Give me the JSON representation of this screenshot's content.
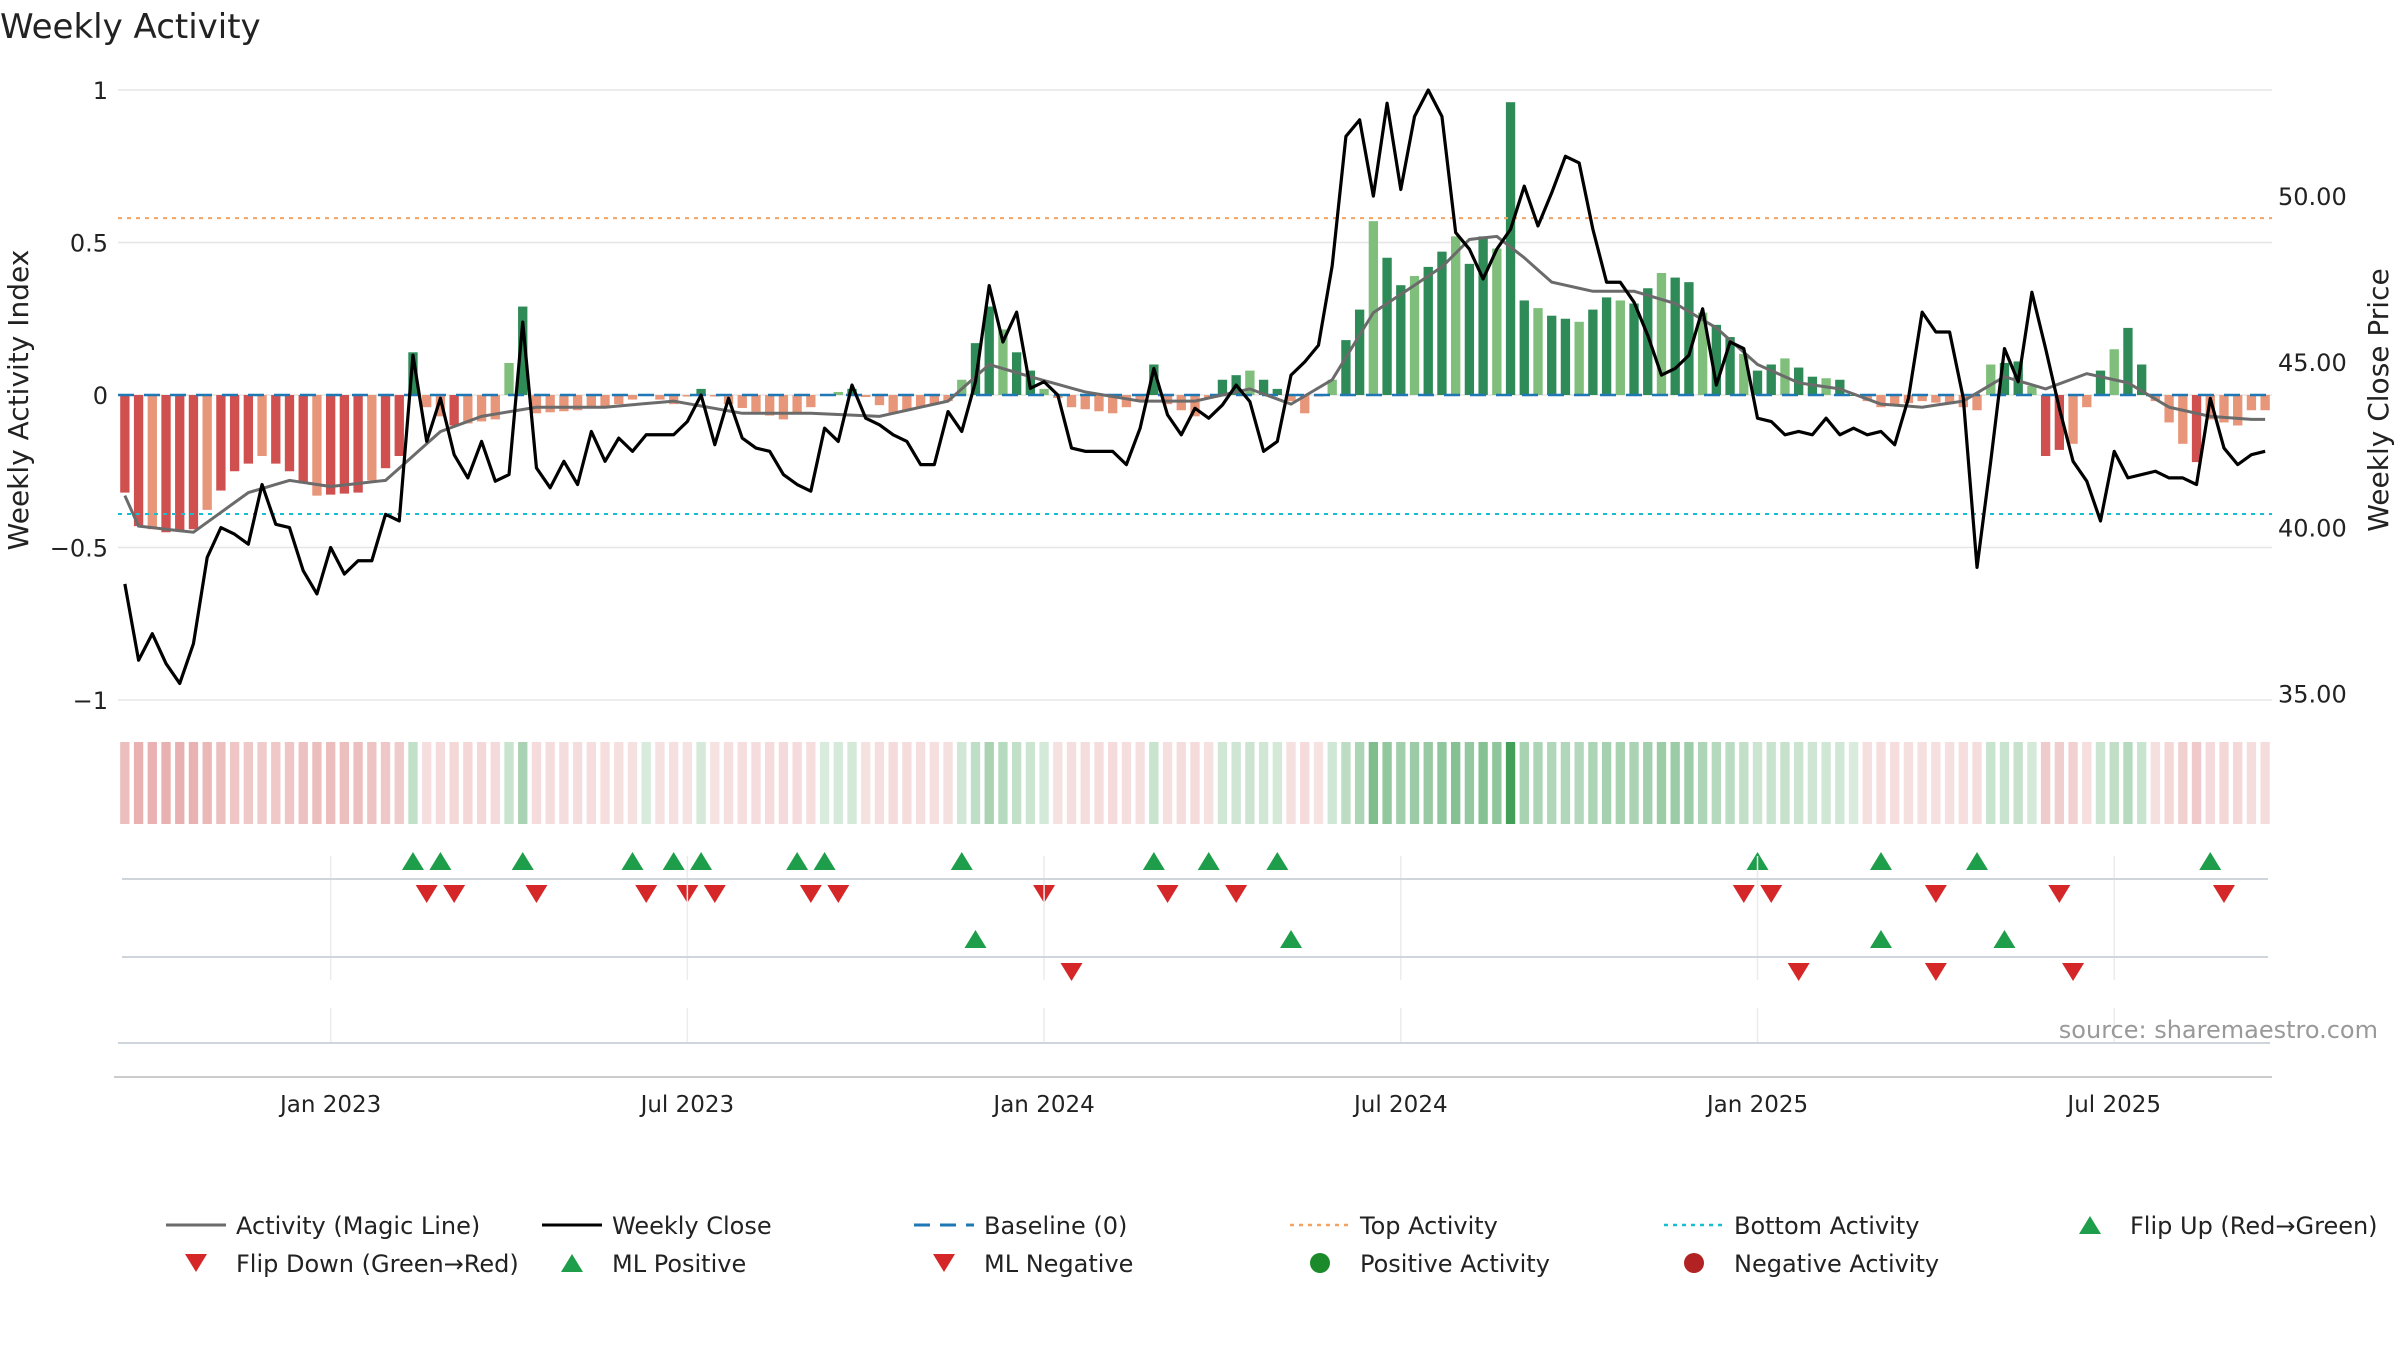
{
  "chart_data": {
    "type": "bar+line",
    "title": "Weekly Activity",
    "ylabel_left": "Weekly Activity Index",
    "ylabel_right": "Weekly Close Price",
    "left_ticks": [
      1,
      0.5,
      0,
      -0.5,
      -1
    ],
    "left_tick_labels": [
      "1",
      "0.5",
      "0",
      "−0.5",
      "−1"
    ],
    "left_ylim": [
      -1,
      1
    ],
    "right_ticks": [
      50,
      45,
      40,
      35
    ],
    "right_tick_labels": [
      "50.00",
      "45.00",
      "40.00",
      "35.00"
    ],
    "right_ylim": [
      34.8,
      53.2
    ],
    "x_ticks": [
      "Jan 2023",
      "Jul 2023",
      "Jan 2024",
      "Jul 2024",
      "Jan 2025",
      "Jul 2025"
    ],
    "x_tick_weeks": [
      15,
      41,
      67,
      93,
      119,
      145
    ],
    "weeks": 157,
    "top_activity": 0.58,
    "bottom_activity": -0.39,
    "baseline": 0,
    "activity_anchors": [
      [
        0,
        -0.32
      ],
      [
        1,
        -0.43
      ],
      [
        3,
        -0.45
      ],
      [
        5,
        -0.44
      ],
      [
        8,
        -0.25
      ],
      [
        10,
        -0.2
      ],
      [
        12,
        -0.25
      ],
      [
        14,
        -0.33
      ],
      [
        17,
        -0.32
      ],
      [
        20,
        -0.2
      ],
      [
        21,
        0.14
      ],
      [
        22,
        -0.04
      ],
      [
        24,
        -0.1
      ],
      [
        27,
        -0.08
      ],
      [
        29,
        0.29
      ],
      [
        30,
        -0.06
      ],
      [
        33,
        -0.05
      ],
      [
        36,
        -0.03
      ],
      [
        38,
        0.0
      ],
      [
        40,
        -0.03
      ],
      [
        42,
        0.02
      ],
      [
        44,
        -0.03
      ],
      [
        48,
        -0.08
      ],
      [
        50,
        -0.04
      ],
      [
        51,
        0.0
      ],
      [
        53,
        0.02
      ],
      [
        56,
        -0.06
      ],
      [
        58,
        -0.04
      ],
      [
        60,
        -0.02
      ],
      [
        61,
        0.05
      ],
      [
        63,
        0.29
      ],
      [
        65,
        0.14
      ],
      [
        67,
        0.02
      ],
      [
        69,
        -0.04
      ],
      [
        72,
        -0.06
      ],
      [
        74,
        -0.02
      ],
      [
        75,
        0.1
      ],
      [
        76,
        -0.03
      ],
      [
        78,
        -0.07
      ],
      [
        80,
        0.05
      ],
      [
        82,
        0.08
      ],
      [
        84,
        0.02
      ],
      [
        86,
        -0.06
      ],
      [
        88,
        0.05
      ],
      [
        89,
        0.18
      ],
      [
        90,
        0.28
      ],
      [
        91,
        0.57
      ],
      [
        92,
        0.45
      ],
      [
        93,
        0.36
      ],
      [
        95,
        0.42
      ],
      [
        97,
        0.52
      ],
      [
        98,
        0.43
      ],
      [
        99,
        0.52
      ],
      [
        100,
        0.48
      ],
      [
        101,
        0.96
      ],
      [
        102,
        0.31
      ],
      [
        104,
        0.26
      ],
      [
        106,
        0.24
      ],
      [
        108,
        0.32
      ],
      [
        110,
        0.3
      ],
      [
        112,
        0.4
      ],
      [
        114,
        0.37
      ],
      [
        115,
        0.27
      ],
      [
        117,
        0.19
      ],
      [
        119,
        0.08
      ],
      [
        121,
        0.12
      ],
      [
        123,
        0.06
      ],
      [
        125,
        0.05
      ],
      [
        126,
        0.0
      ],
      [
        128,
        -0.04
      ],
      [
        131,
        -0.02
      ],
      [
        133,
        -0.03
      ],
      [
        135,
        -0.05
      ],
      [
        136,
        0.1
      ],
      [
        138,
        0.11
      ],
      [
        139,
        0.03
      ],
      [
        140,
        -0.2
      ],
      [
        142,
        -0.16
      ],
      [
        144,
        0.08
      ],
      [
        146,
        0.22
      ],
      [
        147,
        0.1
      ],
      [
        148,
        -0.02
      ],
      [
        150,
        -0.16
      ],
      [
        151,
        -0.22
      ],
      [
        152,
        -0.08
      ],
      [
        154,
        -0.1
      ],
      [
        155,
        -0.05
      ],
      [
        156,
        -0.05
      ]
    ],
    "magic_line_anchors": [
      [
        0,
        -0.33
      ],
      [
        1,
        -0.43
      ],
      [
        5,
        -0.45
      ],
      [
        9,
        -0.32
      ],
      [
        12,
        -0.28
      ],
      [
        15,
        -0.3
      ],
      [
        19,
        -0.28
      ],
      [
        21,
        -0.2
      ],
      [
        23,
        -0.12
      ],
      [
        26,
        -0.07
      ],
      [
        30,
        -0.04
      ],
      [
        35,
        -0.04
      ],
      [
        40,
        -0.02
      ],
      [
        45,
        -0.06
      ],
      [
        50,
        -0.06
      ],
      [
        55,
        -0.07
      ],
      [
        60,
        -0.02
      ],
      [
        63,
        0.1
      ],
      [
        66,
        0.06
      ],
      [
        70,
        0.01
      ],
      [
        74,
        -0.02
      ],
      [
        78,
        -0.02
      ],
      [
        82,
        0.02
      ],
      [
        85,
        -0.03
      ],
      [
        88,
        0.05
      ],
      [
        91,
        0.27
      ],
      [
        93,
        0.33
      ],
      [
        96,
        0.42
      ],
      [
        98,
        0.51
      ],
      [
        100,
        0.52
      ],
      [
        102,
        0.45
      ],
      [
        104,
        0.37
      ],
      [
        107,
        0.34
      ],
      [
        110,
        0.34
      ],
      [
        113,
        0.3
      ],
      [
        116,
        0.22
      ],
      [
        119,
        0.1
      ],
      [
        122,
        0.04
      ],
      [
        125,
        0.02
      ],
      [
        128,
        -0.03
      ],
      [
        131,
        -0.04
      ],
      [
        134,
        -0.02
      ],
      [
        137,
        0.06
      ],
      [
        140,
        0.02
      ],
      [
        143,
        0.07
      ],
      [
        146,
        0.04
      ],
      [
        149,
        -0.04
      ],
      [
        152,
        -0.07
      ],
      [
        155,
        -0.08
      ],
      [
        156,
        -0.08
      ]
    ],
    "close_anchors": [
      [
        0,
        38.3
      ],
      [
        1,
        36.0
      ],
      [
        2,
        36.8
      ],
      [
        3,
        35.9
      ],
      [
        4,
        35.3
      ],
      [
        5,
        36.5
      ],
      [
        6,
        39.1
      ],
      [
        7,
        40.0
      ],
      [
        8,
        39.8
      ],
      [
        9,
        39.5
      ],
      [
        10,
        41.3
      ],
      [
        11,
        40.1
      ],
      [
        12,
        40.0
      ],
      [
        13,
        38.7
      ],
      [
        14,
        38.0
      ],
      [
        15,
        39.4
      ],
      [
        16,
        38.6
      ],
      [
        17,
        39.0
      ],
      [
        18,
        39.0
      ],
      [
        19,
        40.4
      ],
      [
        20,
        40.2
      ],
      [
        21,
        45.2
      ],
      [
        22,
        42.6
      ],
      [
        23,
        43.9
      ],
      [
        24,
        42.2
      ],
      [
        25,
        41.5
      ],
      [
        26,
        42.6
      ],
      [
        27,
        41.4
      ],
      [
        28,
        41.6
      ],
      [
        29,
        46.2
      ],
      [
        30,
        41.8
      ],
      [
        31,
        41.2
      ],
      [
        32,
        42.0
      ],
      [
        33,
        41.3
      ],
      [
        34,
        42.9
      ],
      [
        35,
        42.0
      ],
      [
        36,
        42.7
      ],
      [
        37,
        42.3
      ],
      [
        38,
        42.8
      ],
      [
        39,
        42.8
      ],
      [
        40,
        42.8
      ],
      [
        41,
        43.2
      ],
      [
        42,
        44.0
      ],
      [
        43,
        42.5
      ],
      [
        44,
        43.9
      ],
      [
        45,
        42.7
      ],
      [
        46,
        42.4
      ],
      [
        47,
        42.3
      ],
      [
        48,
        41.6
      ],
      [
        49,
        41.3
      ],
      [
        50,
        41.1
      ],
      [
        51,
        43.0
      ],
      [
        52,
        42.6
      ],
      [
        53,
        44.3
      ],
      [
        54,
        43.3
      ],
      [
        55,
        43.1
      ],
      [
        56,
        42.8
      ],
      [
        57,
        42.6
      ],
      [
        58,
        41.9
      ],
      [
        59,
        41.9
      ],
      [
        60,
        43.5
      ],
      [
        61,
        42.9
      ],
      [
        62,
        44.4
      ],
      [
        63,
        47.3
      ],
      [
        64,
        45.6
      ],
      [
        65,
        46.5
      ],
      [
        66,
        44.2
      ],
      [
        67,
        44.4
      ],
      [
        68,
        44.0
      ],
      [
        69,
        42.4
      ],
      [
        70,
        42.3
      ],
      [
        71,
        42.3
      ],
      [
        72,
        42.3
      ],
      [
        73,
        41.9
      ],
      [
        74,
        43.0
      ],
      [
        75,
        44.8
      ],
      [
        76,
        43.4
      ],
      [
        77,
        42.8
      ],
      [
        78,
        43.6
      ],
      [
        79,
        43.3
      ],
      [
        80,
        43.7
      ],
      [
        81,
        44.3
      ],
      [
        82,
        43.8
      ],
      [
        83,
        42.3
      ],
      [
        84,
        42.6
      ],
      [
        85,
        44.6
      ],
      [
        86,
        45.0
      ],
      [
        87,
        45.5
      ],
      [
        88,
        47.9
      ],
      [
        89,
        51.8
      ],
      [
        90,
        52.3
      ],
      [
        91,
        50.0
      ],
      [
        92,
        52.8
      ],
      [
        93,
        50.2
      ],
      [
        94,
        52.4
      ],
      [
        95,
        53.2
      ],
      [
        96,
        52.4
      ],
      [
        97,
        48.9
      ],
      [
        98,
        48.4
      ],
      [
        99,
        47.5
      ],
      [
        100,
        48.4
      ],
      [
        101,
        49.0
      ],
      [
        102,
        50.3
      ],
      [
        103,
        49.1
      ],
      [
        104,
        50.1
      ],
      [
        105,
        51.2
      ],
      [
        106,
        51.0
      ],
      [
        107,
        49.0
      ],
      [
        108,
        47.4
      ],
      [
        109,
        47.4
      ],
      [
        110,
        46.8
      ],
      [
        111,
        45.8
      ],
      [
        112,
        44.6
      ],
      [
        113,
        44.8
      ],
      [
        114,
        45.2
      ],
      [
        115,
        46.6
      ],
      [
        116,
        44.3
      ],
      [
        117,
        45.6
      ],
      [
        118,
        45.4
      ],
      [
        119,
        43.3
      ],
      [
        120,
        43.2
      ],
      [
        121,
        42.8
      ],
      [
        122,
        42.9
      ],
      [
        123,
        42.8
      ],
      [
        124,
        43.3
      ],
      [
        125,
        42.8
      ],
      [
        126,
        43.0
      ],
      [
        127,
        42.8
      ],
      [
        128,
        42.9
      ],
      [
        129,
        42.5
      ],
      [
        130,
        43.9
      ],
      [
        131,
        46.5
      ],
      [
        132,
        45.9
      ],
      [
        133,
        45.9
      ],
      [
        134,
        43.9
      ],
      [
        135,
        38.8
      ],
      [
        136,
        42.0
      ],
      [
        137,
        45.4
      ],
      [
        138,
        44.4
      ],
      [
        139,
        47.1
      ],
      [
        140,
        45.4
      ],
      [
        141,
        43.6
      ],
      [
        142,
        42.0
      ],
      [
        143,
        41.4
      ],
      [
        144,
        40.2
      ],
      [
        145,
        42.3
      ],
      [
        146,
        41.5
      ],
      [
        147,
        41.6
      ],
      [
        148,
        41.7
      ],
      [
        149,
        41.5
      ],
      [
        150,
        41.5
      ],
      [
        151,
        41.3
      ],
      [
        152,
        43.9
      ],
      [
        153,
        42.4
      ],
      [
        154,
        41.9
      ],
      [
        155,
        42.2
      ],
      [
        156,
        42.3
      ]
    ],
    "flip_up_weeks": [
      21,
      23,
      29,
      37,
      40,
      42,
      49,
      51,
      61,
      75,
      79,
      84,
      119,
      128,
      135,
      152
    ],
    "flip_down_weeks": [
      22,
      24,
      30,
      38,
      41,
      43,
      50,
      52,
      67,
      76,
      81,
      118,
      120,
      132,
      141,
      153
    ],
    "ml_positive_weeks": [
      62,
      85,
      128,
      137
    ],
    "ml_negative_weeks": [
      69,
      122,
      132,
      142
    ],
    "legend": [
      {
        "label": "Activity (Magic Line)",
        "kind": "line",
        "color": "#6b6b6b"
      },
      {
        "label": "Weekly Close",
        "kind": "line",
        "color": "#000000"
      },
      {
        "label": "Baseline (0)",
        "kind": "dash",
        "color": "#1f77b4"
      },
      {
        "label": "Top Activity",
        "kind": "dot",
        "color": "#f4a261"
      },
      {
        "label": "Bottom Activity",
        "kind": "dot",
        "color": "#17becf"
      },
      {
        "label": "Flip Up (Red→Green)",
        "kind": "tri-up",
        "color": "#1e9e4a"
      },
      {
        "label": "Flip Down (Green→Red)",
        "kind": "tri-down",
        "color": "#d62728"
      },
      {
        "label": "ML Positive",
        "kind": "tri-up",
        "color": "#1e9e4a"
      },
      {
        "label": "ML Negative",
        "kind": "tri-down",
        "color": "#d62728"
      },
      {
        "label": "Positive Activity",
        "kind": "circle",
        "color": "#1a8a2a"
      },
      {
        "label": "Negative Activity",
        "kind": "circle",
        "color": "#b22222"
      }
    ],
    "source": "source: sharemaestro.com"
  },
  "colors": {
    "pos_strong": "#2e8b57",
    "pos_weak": "#7fbf7b",
    "neg_strong": "#d05050",
    "neg_weak": "#e8967a",
    "heat_pos": "#3a9a4f",
    "heat_neg": "#d66f6f",
    "close": "#000000",
    "magic": "#6b6b6b",
    "baseline": "#1f77b4",
    "top": "#f4a261",
    "bottom": "#17becf",
    "flip_up": "#1e9e4a",
    "flip_down": "#d62728"
  }
}
